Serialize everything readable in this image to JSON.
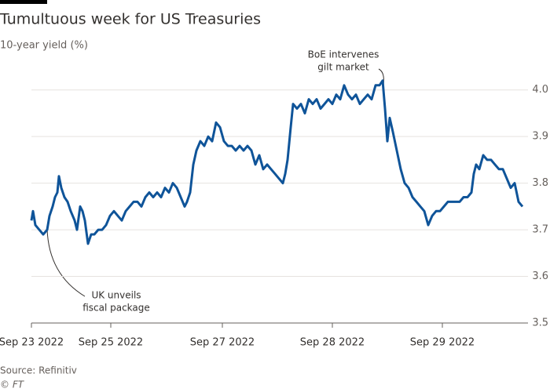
{
  "chart_data": {
    "type": "line",
    "title": "Tumultuous week for US Treasuries",
    "subtitle": "10-year yield (%)",
    "source": "Source: Refinitiv",
    "credit": "© FT",
    "color": "#0f5499",
    "x": [
      0,
      2,
      5,
      10,
      15,
      20,
      23,
      27,
      30,
      33,
      35,
      38,
      42,
      46,
      50,
      55,
      58,
      62,
      65,
      68,
      72,
      76,
      80,
      85,
      90,
      95,
      100,
      105,
      110,
      115,
      120,
      125,
      130,
      135,
      140,
      145,
      150,
      155,
      160,
      165,
      170,
      175,
      180,
      185,
      190,
      195,
      198,
      202,
      206,
      210,
      215,
      220,
      225,
      230,
      235,
      240,
      245,
      250,
      255,
      260,
      265,
      270,
      275,
      280,
      285,
      290,
      295,
      300,
      305,
      310,
      315,
      320,
      323,
      326,
      330,
      333,
      338,
      343,
      348,
      353,
      358,
      363,
      368,
      373,
      378,
      383,
      388,
      393,
      398,
      403,
      408,
      413,
      418,
      423,
      428,
      433,
      438,
      443,
      447,
      450,
      453,
      456,
      460,
      465,
      470,
      475,
      480,
      485,
      490,
      495,
      500,
      505,
      510,
      515,
      520,
      525,
      530,
      535,
      540,
      545,
      550,
      555,
      560,
      563,
      566,
      570,
      575,
      580,
      585,
      590,
      595,
      600,
      605,
      610,
      615,
      620,
      625
    ],
    "values": [
      3.72,
      3.74,
      3.71,
      3.7,
      3.69,
      3.7,
      3.73,
      3.75,
      3.77,
      3.78,
      3.815,
      3.79,
      3.77,
      3.76,
      3.74,
      3.72,
      3.7,
      3.75,
      3.74,
      3.72,
      3.67,
      3.69,
      3.69,
      3.7,
      3.7,
      3.71,
      3.73,
      3.74,
      3.73,
      3.72,
      3.74,
      3.75,
      3.76,
      3.76,
      3.75,
      3.77,
      3.78,
      3.77,
      3.78,
      3.77,
      3.79,
      3.78,
      3.8,
      3.79,
      3.77,
      3.75,
      3.76,
      3.78,
      3.84,
      3.87,
      3.89,
      3.88,
      3.9,
      3.89,
      3.93,
      3.92,
      3.89,
      3.88,
      3.88,
      3.87,
      3.88,
      3.87,
      3.88,
      3.87,
      3.84,
      3.86,
      3.83,
      3.84,
      3.83,
      3.82,
      3.81,
      3.8,
      3.82,
      3.85,
      3.92,
      3.97,
      3.96,
      3.97,
      3.95,
      3.98,
      3.97,
      3.98,
      3.96,
      3.97,
      3.98,
      3.97,
      3.99,
      3.98,
      4.01,
      3.99,
      3.98,
      3.99,
      3.97,
      3.98,
      3.99,
      3.98,
      4.01,
      4.01,
      4.02,
      3.96,
      3.89,
      3.94,
      3.91,
      3.87,
      3.83,
      3.8,
      3.79,
      3.77,
      3.76,
      3.75,
      3.74,
      3.71,
      3.73,
      3.74,
      3.74,
      3.75,
      3.76,
      3.76,
      3.76,
      3.76,
      3.77,
      3.77,
      3.78,
      3.82,
      3.84,
      3.83,
      3.86,
      3.85,
      3.85,
      3.84,
      3.83,
      3.83,
      3.81,
      3.79,
      3.8,
      3.76,
      3.75
    ],
    "xlim": [
      0,
      625
    ],
    "xticks": [
      {
        "value": 0,
        "label": "Sep 23 2022"
      },
      {
        "value": 101,
        "label": "Sep 25 2022"
      },
      {
        "value": 243,
        "label": "Sep 27 2022"
      },
      {
        "value": 383,
        "label": "Sep 28 2022"
      },
      {
        "value": 523,
        "label": "Sep 29 2022"
      }
    ],
    "ylim": [
      3.5,
      4.05
    ],
    "yticks": [
      3.5,
      3.6,
      3.7,
      3.8,
      3.9,
      {
        "value": 4,
        "label": "4.0"
      }
    ],
    "grid": true,
    "annotations": [
      {
        "lines": [
          "BoE intervenes",
          "gilt market"
        ]
      },
      {
        "lines": [
          "UK unveils",
          "fiscal package"
        ]
      }
    ]
  }
}
